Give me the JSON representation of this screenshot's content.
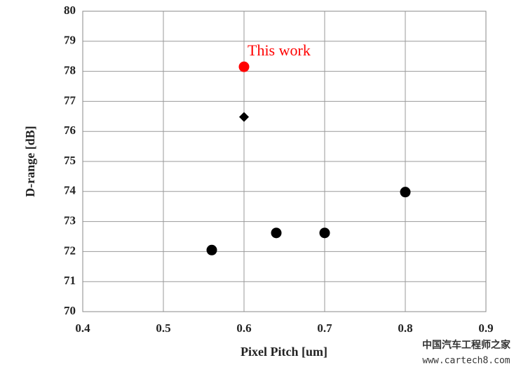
{
  "chart_data": {
    "type": "scatter",
    "x_label": "Pixel Pitch  [um]",
    "y_label": "D-range [dB]",
    "annotation": "This work",
    "series": [
      {
        "color": "#000000",
        "marker": "circle",
        "x": [
          0.56,
          0.64,
          0.7,
          0.8
        ],
        "values": [
          72.05,
          72.62,
          72.62,
          73.98
        ]
      },
      {
        "color": "#000000",
        "marker": "diamond",
        "x": [
          0.6
        ],
        "values": [
          76.48
        ]
      },
      {
        "color": "#ff0000",
        "marker": "circle",
        "x": [
          0.6
        ],
        "values": [
          78.15
        ]
      }
    ],
    "xlim": [
      0.4,
      0.9
    ],
    "xticks": [
      0.4,
      0.5,
      0.6,
      0.7,
      0.8,
      0.9
    ],
    "ylim": [
      70,
      80
    ],
    "yticks": [
      70,
      71,
      72,
      73,
      74,
      75,
      76,
      77,
      78,
      79,
      80
    ],
    "grid": true
  },
  "watermark": {
    "title": "中国汽车工程师之家",
    "url": "www.cartech8.com"
  }
}
